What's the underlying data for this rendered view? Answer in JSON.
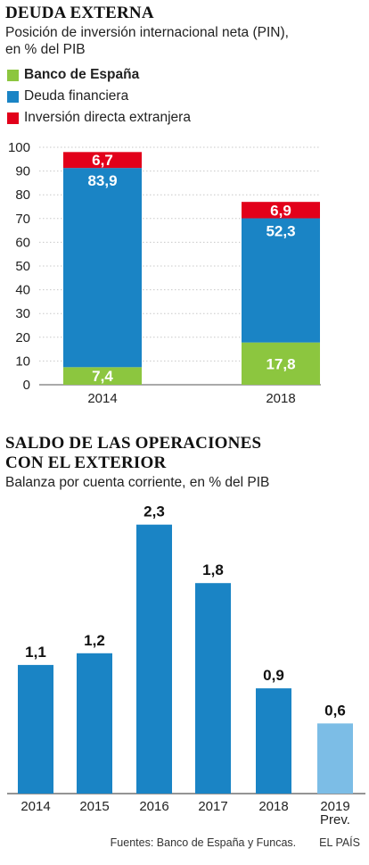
{
  "chart_data": [
    {
      "type": "bar",
      "stacked": true,
      "title": "DEUDA EXTERNA",
      "subtitle": [
        "Posición de inversión internacional neta (PIN),",
        "en % del PIB"
      ],
      "categories": [
        "2014",
        "2018"
      ],
      "series": [
        {
          "name": "Banco de España",
          "values": [
            7.4,
            17.8
          ],
          "labels": [
            "7,4",
            "17,8"
          ],
          "color": "#8cc63f"
        },
        {
          "name": "Deuda financiera",
          "values": [
            83.9,
            52.3
          ],
          "labels": [
            "83,9",
            "52,3"
          ],
          "color": "#1a84c5"
        },
        {
          "name": "Inversión directa extranjera",
          "values": [
            6.7,
            6.9
          ],
          "labels": [
            "6,7",
            "6,9"
          ],
          "color": "#e2001a"
        }
      ],
      "ylim": [
        0,
        100
      ],
      "yticks": [
        0,
        10,
        20,
        30,
        40,
        50,
        60,
        70,
        80,
        90,
        100
      ],
      "ytick_labels": [
        "0",
        "10",
        "20",
        "30",
        "40",
        "50",
        "60",
        "70",
        "80",
        "90",
        "100"
      ],
      "grid": true,
      "legend": "top-left"
    },
    {
      "type": "bar",
      "title": [
        "SALDO DE LAS OPERACIONES",
        "CON EL EXTERIOR"
      ],
      "subtitle": "Balanza por cuenta corriente, en % del PIB",
      "categories": [
        "2014",
        "2015",
        "2016",
        "2017",
        "2018",
        "2019 Prev."
      ],
      "category_lines": [
        [
          "2014"
        ],
        [
          "2015"
        ],
        [
          "2016"
        ],
        [
          "2017"
        ],
        [
          "2018"
        ],
        [
          "2019",
          "Prev."
        ]
      ],
      "values": [
        1.1,
        1.2,
        2.3,
        1.8,
        0.9,
        0.6
      ],
      "labels": [
        "1,1",
        "1,2",
        "2,3",
        "1,8",
        "0,9",
        "0,6"
      ],
      "colors": [
        "#1a84c5",
        "#1a84c5",
        "#1a84c5",
        "#1a84c5",
        "#1a84c5",
        "#7cbde6"
      ],
      "grid": false
    }
  ],
  "footer": {
    "source": "Fuentes: Banco de España y Funcas.",
    "brand": "EL PAÍS"
  }
}
